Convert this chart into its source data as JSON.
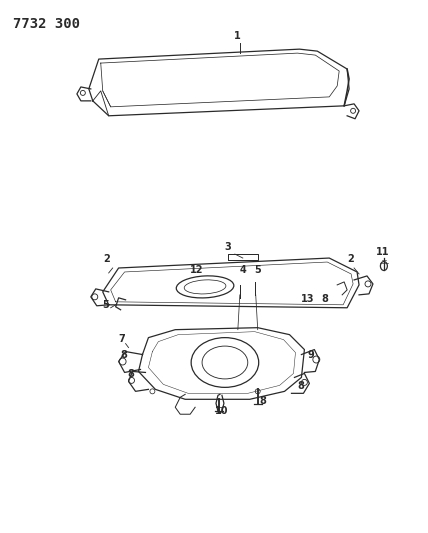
{
  "title": "7732 300",
  "bg_color": "#ffffff",
  "line_color": "#2a2a2a",
  "title_fontsize": 10,
  "label_fontsize": 7,
  "fig_width": 4.28,
  "fig_height": 5.33,
  "dpi": 100
}
